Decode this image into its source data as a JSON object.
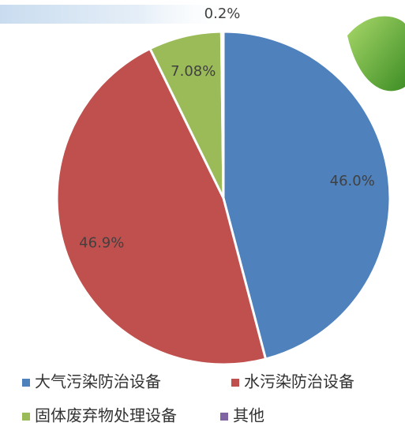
{
  "chart_data": {
    "type": "pie",
    "categories": [
      "大气污染防治设备",
      "水污染防治设备",
      "固体废弃物处理设备",
      "其他"
    ],
    "values": [
      46.0,
      46.9,
      7.08,
      0.2
    ],
    "value_labels": [
      "46.0%",
      "46.9%",
      "7.08%",
      "0.2%"
    ],
    "colors": [
      "#4f81bd",
      "#c0504d",
      "#9bbb59",
      "#8064a2"
    ],
    "legend": "bottom"
  }
}
